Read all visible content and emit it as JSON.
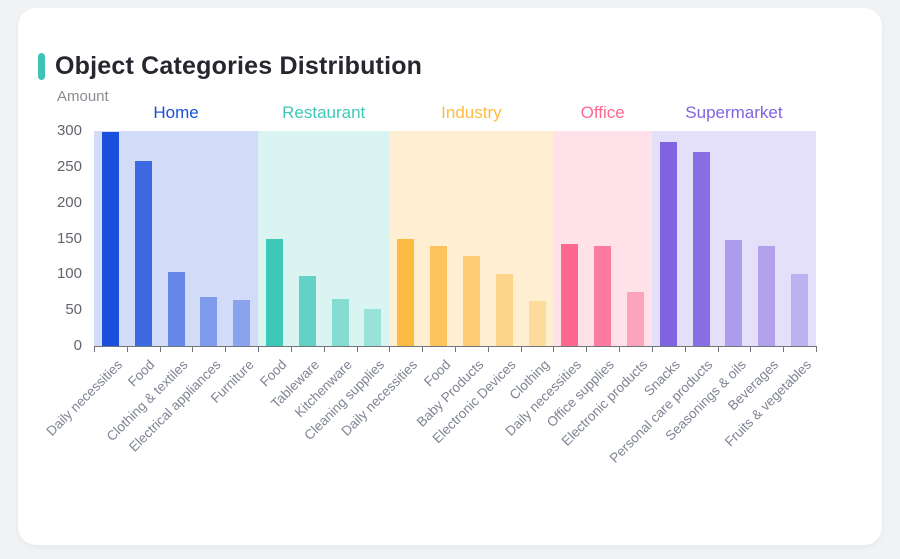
{
  "chart_data": {
    "type": "bar",
    "title": "Object Categories Distribution",
    "ylabel": "Amount",
    "ylim": [
      0,
      300
    ],
    "yticks": [
      300,
      250,
      200,
      150,
      100,
      50,
      0
    ],
    "grid": false,
    "legend_position": "group-headers-top",
    "accent_color": "#3ec4b5",
    "groups": [
      {
        "name": "Home",
        "color": "#1c4fdd",
        "band_alpha": 0.2,
        "bars": [
          {
            "label": "Daily necessities",
            "value": 298,
            "alpha": 1
          },
          {
            "label": "Food",
            "value": 258,
            "alpha": 0.82
          },
          {
            "label": "Clothing & textiles",
            "value": 103,
            "alpha": 0.6
          },
          {
            "label": "Electrical appliances",
            "value": 69,
            "alpha": 0.46
          },
          {
            "label": "Furniture",
            "value": 64,
            "alpha": 0.4
          }
        ]
      },
      {
        "name": "Restaurant",
        "color": "#3fc8b7",
        "band_alpha": 0.2,
        "bars": [
          {
            "label": "Food",
            "value": 149,
            "alpha": 1
          },
          {
            "label": "Tableware",
            "value": 97,
            "alpha": 0.78
          },
          {
            "label": "Kitchenware",
            "value": 65,
            "alpha": 0.55
          },
          {
            "label": "Cleaning supplies",
            "value": 51,
            "alpha": 0.42
          }
        ]
      },
      {
        "name": "Industry",
        "color": "#fcbb41",
        "band_alpha": 0.24,
        "bars": [
          {
            "label": "Daily necessities",
            "value": 150,
            "alpha": 1
          },
          {
            "label": "Food",
            "value": 139,
            "alpha": 0.82
          },
          {
            "label": "Baby Products",
            "value": 126,
            "alpha": 0.66
          },
          {
            "label": "Electronic Devices",
            "value": 100,
            "alpha": 0.5
          },
          {
            "label": "Clothing",
            "value": 63,
            "alpha": 0.38
          }
        ]
      },
      {
        "name": "Office",
        "color": "#fc6890",
        "band_alpha": 0.2,
        "bars": [
          {
            "label": "Daily necessities",
            "value": 142,
            "alpha": 1
          },
          {
            "label": "Office supplies",
            "value": 139,
            "alpha": 0.85
          },
          {
            "label": "Electronic products",
            "value": 75,
            "alpha": 0.5
          }
        ]
      },
      {
        "name": "Supermarket",
        "color": "#7f63e0",
        "band_alpha": 0.2,
        "bars": [
          {
            "label": "Snacks",
            "value": 284,
            "alpha": 1
          },
          {
            "label": "Personal care products",
            "value": 271,
            "alpha": 0.9
          },
          {
            "label": "Seasonings & oils",
            "value": 148,
            "alpha": 0.55
          },
          {
            "label": "Beverages",
            "value": 140,
            "alpha": 0.5
          },
          {
            "label": "Fruits & vegetables",
            "value": 101,
            "alpha": 0.38
          }
        ]
      }
    ]
  }
}
